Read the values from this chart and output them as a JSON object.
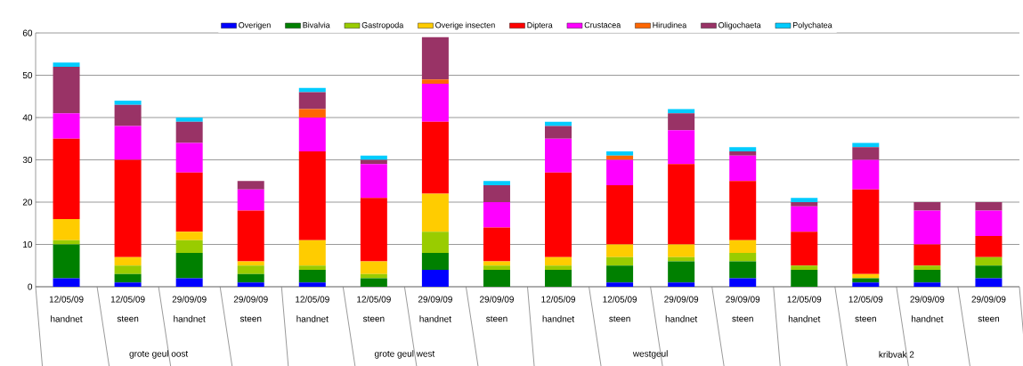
{
  "chart_data": {
    "type": "bar",
    "stacked": true,
    "categories": [
      "12/05/09",
      "12/05/09",
      "29/09/09",
      "29/09/09",
      "12/05/09",
      "12/05/09",
      "29/09/09",
      "29/09/09",
      "12/05/09",
      "12/05/09",
      "29/09/09",
      "29/09/09",
      "12/05/09",
      "12/05/09",
      "29/09/09",
      "29/09/09"
    ],
    "series": [
      {
        "name": "Overigen",
        "color": "#0000ff",
        "values": [
          2,
          1,
          2,
          1,
          1,
          0,
          4,
          0,
          0,
          1,
          1,
          2,
          0,
          1,
          1,
          2
        ]
      },
      {
        "name": "Bivalvia",
        "color": "#008000",
        "values": [
          8,
          2,
          6,
          2,
          3,
          2,
          4,
          4,
          4,
          4,
          5,
          4,
          4,
          1,
          3,
          3
        ]
      },
      {
        "name": "Gastropoda",
        "color": "#99cc00",
        "values": [
          1,
          2,
          3,
          2,
          1,
          1,
          5,
          1,
          1,
          2,
          1,
          2,
          1,
          0,
          1,
          2
        ]
      },
      {
        "name": "Overige insecten",
        "color": "#ffcc00",
        "values": [
          5,
          2,
          2,
          1,
          6,
          3,
          9,
          1,
          2,
          3,
          3,
          3,
          0,
          1,
          0,
          0
        ]
      },
      {
        "name": "Diptera",
        "color": "#ff0000",
        "values": [
          19,
          23,
          14,
          12,
          21,
          15,
          17,
          8,
          20,
          14,
          19,
          14,
          8,
          20,
          5,
          5
        ]
      },
      {
        "name": "Crustacea",
        "color": "#ff00ff",
        "values": [
          6,
          8,
          7,
          5,
          8,
          8,
          9,
          6,
          8,
          6,
          8,
          6,
          6,
          7,
          8,
          6
        ]
      },
      {
        "name": "Hirudinea",
        "color": "#ff6600",
        "values": [
          0,
          0,
          0,
          0,
          2,
          0,
          1,
          0,
          0,
          1,
          0,
          0,
          0,
          0,
          0,
          0
        ]
      },
      {
        "name": "Oligochaeta",
        "color": "#993366",
        "values": [
          11,
          5,
          5,
          2,
          4,
          1,
          10,
          4,
          3,
          0,
          4,
          1,
          1,
          3,
          2,
          2
        ]
      },
      {
        "name": "Polychatea",
        "color": "#00ccff",
        "values": [
          1,
          1,
          1,
          0,
          1,
          1,
          0,
          1,
          1,
          1,
          1,
          1,
          1,
          1,
          0,
          0
        ]
      }
    ],
    "annotations": [
      "handnet",
      "steen",
      "handnet",
      "steen",
      "handnet",
      "steen",
      "handnet",
      "steen",
      "handnet",
      "steen",
      "handnet",
      "steen",
      "handnet",
      "steen",
      "handnet",
      "steen",
      "grote geul oost",
      "grote geul west",
      "westgeul",
      "kribvak 2"
    ],
    "ylim": [
      0,
      60
    ],
    "yticks": [
      0,
      10,
      20,
      30,
      40,
      50,
      60
    ],
    "grid": "y",
    "legend": "top"
  }
}
